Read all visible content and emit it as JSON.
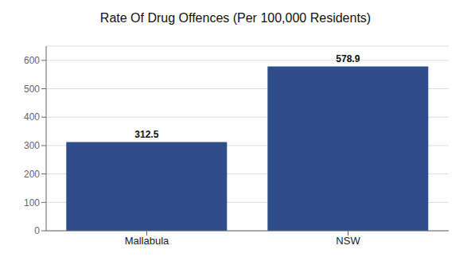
{
  "chart_data": {
    "type": "bar",
    "title": "Rate Of Drug Offences (Per 100,000 Residents)",
    "categories": [
      "Mallabula",
      "NSW"
    ],
    "values": [
      312.5,
      578.9
    ],
    "color": "#2e4d8a",
    "ylim": [
      0,
      650
    ],
    "yticks": [
      0,
      100,
      200,
      300,
      400,
      500,
      600
    ],
    "grid": true,
    "data_labels": true
  }
}
